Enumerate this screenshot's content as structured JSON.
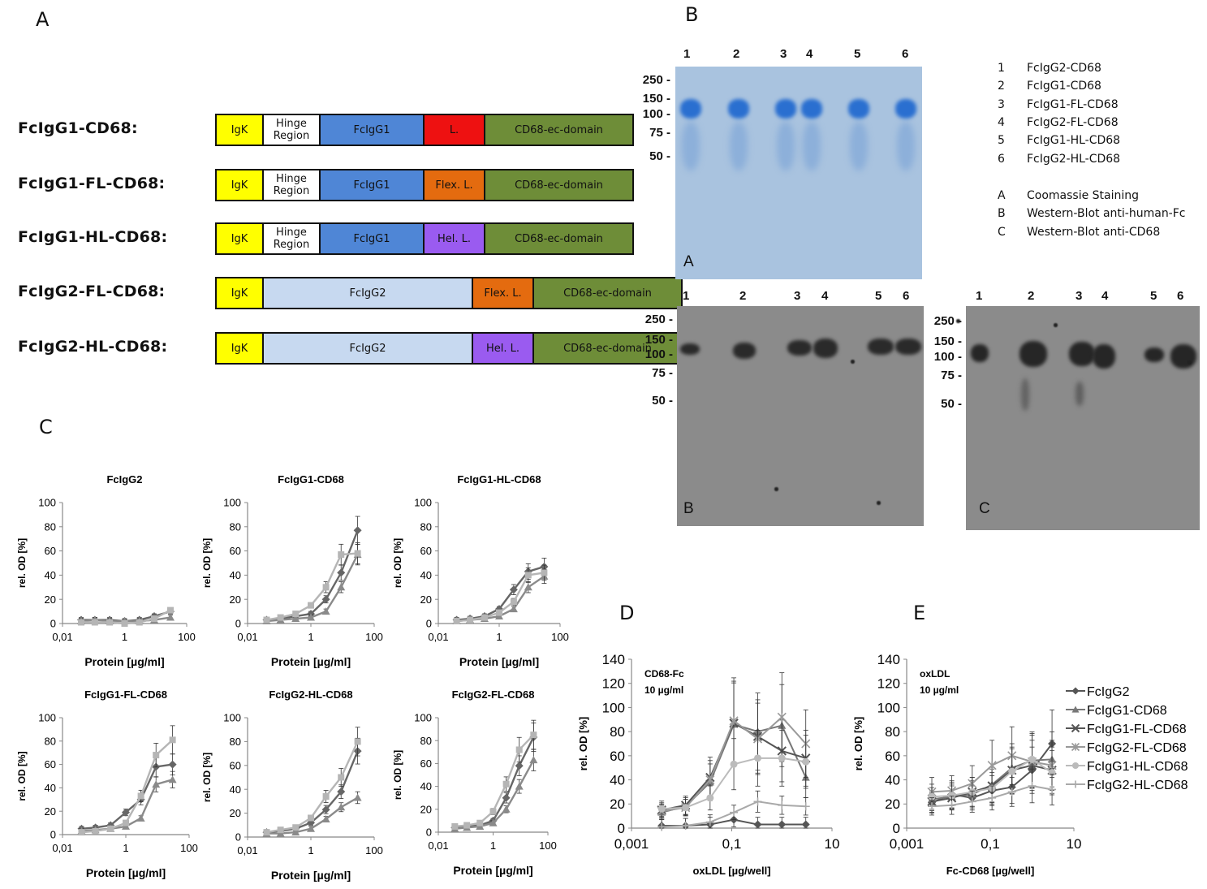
{
  "panel_letters": {
    "A": "A",
    "B": "B",
    "C": "C",
    "D": "D",
    "E": "E"
  },
  "constructs": [
    {
      "name": "FcIgG1-CD68:",
      "segments": [
        {
          "type": "igk",
          "label": "IgK"
        },
        {
          "type": "hinge",
          "label": "Hinge Region"
        },
        {
          "type": "fcg1",
          "label": "FcIgG1"
        },
        {
          "type": "l-red",
          "label": "L."
        },
        {
          "type": "cd68",
          "label": "CD68-ec-domain"
        }
      ]
    },
    {
      "name": "FcIgG1-FL-CD68:",
      "segments": [
        {
          "type": "igk",
          "label": "IgK"
        },
        {
          "type": "hinge",
          "label": "Hinge Region"
        },
        {
          "type": "fcg1",
          "label": "FcIgG1"
        },
        {
          "type": "l-flex",
          "label": "Flex. L."
        },
        {
          "type": "cd68",
          "label": "CD68-ec-domain"
        }
      ]
    },
    {
      "name": "FcIgG1-HL-CD68:",
      "segments": [
        {
          "type": "igk",
          "label": "IgK"
        },
        {
          "type": "hinge",
          "label": "Hinge Region"
        },
        {
          "type": "fcg1",
          "label": "FcIgG1"
        },
        {
          "type": "l-hel",
          "label": "Hel. L."
        },
        {
          "type": "cd68",
          "label": "CD68-ec-domain"
        }
      ]
    },
    {
      "name": "FcIgG2-FL-CD68:",
      "segments": [
        {
          "type": "igk",
          "label": "IgK"
        },
        {
          "type": "fcg2",
          "label": "FcIgG2"
        },
        {
          "type": "l-flex",
          "label": "Flex. L."
        },
        {
          "type": "cd68",
          "label": "CD68-ec-domain"
        }
      ]
    },
    {
      "name": "FcIgG2-HL-CD68:",
      "segments": [
        {
          "type": "igk",
          "label": "IgK"
        },
        {
          "type": "fcg2",
          "label": "FcIgG2"
        },
        {
          "type": "l-hel",
          "label": "Hel. L."
        },
        {
          "type": "cd68",
          "label": "CD68-ec-domain"
        }
      ]
    }
  ],
  "gels": {
    "lanes": [
      "1",
      "2",
      "3",
      "4",
      "5",
      "6"
    ],
    "mw_markers": [
      "250 -",
      "150 -",
      "100 -",
      "75 -",
      "50 -"
    ],
    "blot_labels": {
      "A": "A",
      "B": "B",
      "C": "C"
    },
    "colors": {
      "coomassie_bg": "#a9c3df",
      "coomassie_band": "#2a6fd0",
      "western_bg": "#8a8a8a",
      "western_band": "#2a2a2a"
    }
  },
  "gel_legend": {
    "lanes": [
      {
        "num": "1",
        "name": "FcIgG2-CD68"
      },
      {
        "num": "2",
        "name": "FcIgG1-CD68"
      },
      {
        "num": "3",
        "name": "FcIgG1-FL-CD68"
      },
      {
        "num": "4",
        "name": "FcIgG2-FL-CD68"
      },
      {
        "num": "5",
        "name": "FcIgG1-HL-CD68"
      },
      {
        "num": "6",
        "name": "FcIgG2-HL-CD68"
      }
    ],
    "stains": [
      {
        "num": "A",
        "name": "Coomassie Staining"
      },
      {
        "num": "B",
        "name": "Western-Blot anti-human-Fc"
      },
      {
        "num": "C",
        "name": "Western-Blot anti-CD68"
      }
    ]
  },
  "chart_data": [
    {
      "type": "line",
      "title": "FcIgG2",
      "xlabel": "Protein [µg/ml]",
      "ylabel": "rel. OD [%]",
      "xscale": "log",
      "xlim": [
        0.01,
        100
      ],
      "ylim": [
        0,
        100
      ],
      "xticks": [
        "0,01",
        "1",
        "100"
      ],
      "yticks": [
        "0",
        "20",
        "40",
        "60",
        "80",
        "100"
      ],
      "x": [
        0.04,
        0.11,
        0.33,
        1,
        3,
        9,
        30
      ],
      "series": [
        {
          "values": [
            3,
            3,
            3,
            2,
            3,
            6,
            10
          ]
        },
        {
          "values": [
            2,
            3,
            2,
            2,
            2,
            3,
            5
          ]
        },
        {
          "values": [
            1,
            1,
            1,
            0,
            1,
            4,
            11
          ]
        }
      ]
    },
    {
      "type": "line",
      "title": "FcIgG1-CD68",
      "xlabel": "Protein [µg/ml]",
      "ylabel": "rel. OD [%]",
      "xscale": "log",
      "xlim": [
        0.01,
        100
      ],
      "ylim": [
        0,
        100
      ],
      "xticks": [
        "0,01",
        "1",
        "100"
      ],
      "yticks": [
        "0",
        "20",
        "40",
        "60",
        "80",
        "100"
      ],
      "x": [
        0.04,
        0.11,
        0.33,
        1,
        3,
        9,
        30
      ],
      "series": [
        {
          "values": [
            3,
            4,
            6,
            8,
            20,
            42,
            77
          ]
        },
        {
          "values": [
            2,
            3,
            4,
            5,
            10,
            30,
            57
          ]
        },
        {
          "values": [
            3,
            5,
            8,
            15,
            30,
            57,
            58
          ]
        }
      ]
    },
    {
      "type": "line",
      "title": "FcIgG1-HL-CD68",
      "xlabel": "Protein [µg/ml]",
      "ylabel": "rel. OD [%]",
      "xscale": "log",
      "xlim": [
        0.01,
        100
      ],
      "ylim": [
        0,
        100
      ],
      "xticks": [
        "0,01",
        "1",
        "100"
      ],
      "yticks": [
        "0",
        "20",
        "40",
        "60",
        "80",
        "100"
      ],
      "x": [
        0.04,
        0.11,
        0.33,
        1,
        3,
        9,
        30
      ],
      "series": [
        {
          "values": [
            3,
            4,
            6,
            12,
            28,
            43,
            47
          ]
        },
        {
          "values": [
            2,
            3,
            4,
            6,
            12,
            30,
            39
          ]
        },
        {
          "values": [
            2,
            3,
            5,
            9,
            18,
            40,
            42
          ]
        }
      ]
    },
    {
      "type": "line",
      "title": "FcIgG1-FL-CD68",
      "xlabel": "Protein [µg/ml]",
      "ylabel": "rel. OD [%]",
      "xscale": "log",
      "xlim": [
        0.01,
        100
      ],
      "ylim": [
        0,
        100
      ],
      "xticks": [
        "0,01",
        "1",
        "100"
      ],
      "yticks": [
        "0",
        "20",
        "40",
        "60",
        "80",
        "100"
      ],
      "x": [
        0.04,
        0.11,
        0.33,
        1,
        3,
        9,
        30
      ],
      "series": [
        {
          "values": [
            5,
            6,
            8,
            19,
            30,
            58,
            60
          ]
        },
        {
          "values": [
            3,
            4,
            5,
            7,
            14,
            43,
            47
          ]
        },
        {
          "values": [
            2,
            3,
            5,
            10,
            33,
            68,
            81
          ]
        }
      ]
    },
    {
      "type": "line",
      "title": "FcIgG2-HL-CD68",
      "xlabel": "Protein [µg/ml]",
      "ylabel": "rel. OD [%]",
      "xscale": "log",
      "xlim": [
        0.01,
        100
      ],
      "ylim": [
        0,
        100
      ],
      "xticks": [
        "0,01",
        "1",
        "100"
      ],
      "yticks": [
        "0",
        "20",
        "40",
        "60",
        "80",
        "100"
      ],
      "x": [
        0.04,
        0.11,
        0.33,
        1,
        3,
        9,
        30
      ],
      "series": [
        {
          "values": [
            4,
            5,
            7,
            12,
            23,
            38,
            72
          ]
        },
        {
          "values": [
            3,
            3,
            4,
            7,
            15,
            25,
            33
          ]
        },
        {
          "values": [
            4,
            6,
            8,
            16,
            34,
            50,
            80
          ]
        }
      ]
    },
    {
      "type": "line",
      "title": "FcIgG2-FL-CD68",
      "xlabel": "Protein [µg/ml]",
      "ylabel": "rel. OD [%]",
      "xscale": "log",
      "xlim": [
        0.01,
        100
      ],
      "ylim": [
        0,
        100
      ],
      "xticks": [
        "0,01",
        "1",
        "100"
      ],
      "yticks": [
        "0",
        "20",
        "40",
        "60",
        "80",
        "100"
      ],
      "x": [
        0.04,
        0.11,
        0.33,
        1,
        3,
        9,
        30
      ],
      "series": [
        {
          "values": [
            4,
            5,
            6,
            10,
            30,
            58,
            83
          ]
        },
        {
          "values": [
            3,
            4,
            5,
            8,
            20,
            40,
            63
          ]
        },
        {
          "values": [
            5,
            6,
            8,
            18,
            42,
            72,
            85
          ]
        }
      ]
    },
    {
      "type": "line",
      "title": "",
      "annotation": "CD68-Fc\n10 µg/ml",
      "xlabel": "oxLDL [µg/well]",
      "ylabel": "rel. OD [%]",
      "xscale": "log",
      "xlim": [
        0.001,
        10
      ],
      "ylim": [
        0,
        140
      ],
      "xticks": [
        "0,001",
        "0,1",
        "10"
      ],
      "yticks": [
        "0",
        "20",
        "40",
        "60",
        "80",
        "100",
        "120",
        "140"
      ],
      "x": [
        0.004,
        0.012,
        0.037,
        0.11,
        0.33,
        1,
        3
      ],
      "series": [
        {
          "name": "FcIgG2",
          "values": [
            2,
            2,
            3,
            7,
            3,
            3,
            3
          ]
        },
        {
          "name": "FcIgG1-CD68",
          "values": [
            13,
            18,
            38,
            86,
            80,
            85,
            42
          ]
        },
        {
          "name": "FcIgG1-FL-CD68",
          "values": [
            15,
            19,
            42,
            87,
            76,
            64,
            58
          ]
        },
        {
          "name": "FcIgG2-FL-CD68",
          "values": [
            14,
            17,
            40,
            89,
            74,
            92,
            70
          ]
        },
        {
          "name": "FcIgG1-HL-CD68",
          "values": [
            16,
            17,
            25,
            53,
            58,
            58,
            55
          ]
        },
        {
          "name": "FcIgG2-HL-CD68",
          "values": [
            1,
            2,
            5,
            13,
            22,
            19,
            18
          ]
        }
      ]
    },
    {
      "type": "line",
      "title": "",
      "annotation": "oxLDL\n10 µg/ml",
      "xlabel": "Fc-CD68 [µg/well]",
      "ylabel": "rel. OD [%]",
      "xscale": "log",
      "xlim": [
        0.001,
        10
      ],
      "ylim": [
        0,
        140
      ],
      "xticks": [
        "0,001",
        "0,1",
        "10"
      ],
      "yticks": [
        "0",
        "20",
        "40",
        "60",
        "80",
        "100",
        "120",
        "140"
      ],
      "x": [
        0.004,
        0.012,
        0.037,
        0.11,
        0.33,
        1,
        3
      ],
      "series": [
        {
          "name": "FcIgG2",
          "values": [
            21,
            28,
            25,
            31,
            34,
            48,
            70
          ]
        },
        {
          "name": "FcIgG1-CD68",
          "values": [
            24,
            26,
            28,
            36,
            50,
            56,
            57
          ]
        },
        {
          "name": "FcIgG1-FL-CD68",
          "values": [
            22,
            25,
            30,
            35,
            48,
            52,
            48
          ]
        },
        {
          "name": "FcIgG2-FL-CD68",
          "values": [
            30,
            31,
            37,
            52,
            60,
            55,
            52
          ]
        },
        {
          "name": "FcIgG1-HL-CD68",
          "values": [
            26,
            27,
            30,
            33,
            47,
            57,
            46
          ]
        },
        {
          "name": "FcIgG2-HL-CD68",
          "values": [
            18,
            19,
            22,
            25,
            30,
            35,
            32
          ]
        }
      ]
    }
  ],
  "series_colors": [
    "#555555",
    "#777777",
    "#555555",
    "#999999",
    "#bbbbbb",
    "#a9a9a9"
  ],
  "small_series_colors": [
    "#666666",
    "#8a8a8a",
    "#b5b5b5"
  ]
}
